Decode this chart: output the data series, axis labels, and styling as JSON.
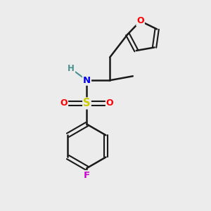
{
  "background_color": "#ececec",
  "bond_color": "#1a1a1a",
  "atom_colors": {
    "O": "#ff0000",
    "N": "#0000ee",
    "S": "#cccc00",
    "F": "#cc00cc",
    "H": "#4a9090"
  },
  "figsize": [
    3.0,
    3.0
  ],
  "dpi": 100
}
